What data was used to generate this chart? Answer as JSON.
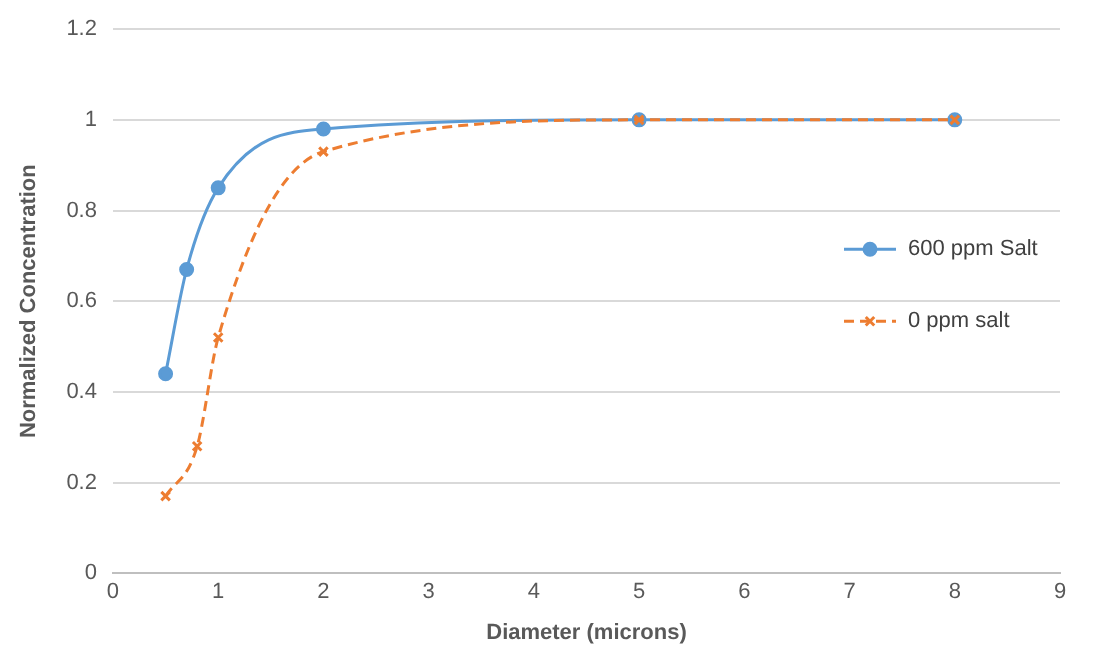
{
  "chart_data": {
    "type": "line",
    "xlabel": "Diameter (microns)",
    "ylabel": "Normalized Concentration",
    "xlim": [
      0,
      9
    ],
    "xticks": [
      0,
      1,
      2,
      3,
      4,
      5,
      6,
      7,
      8,
      9
    ],
    "ylim": [
      0,
      1.2
    ],
    "yticks": [
      0,
      0.2,
      0.4,
      0.6,
      0.8,
      1,
      1.2
    ],
    "grid": "y",
    "legend": "right",
    "series": [
      {
        "name": "600 ppm Salt",
        "color": "#5b9bd5",
        "marker": "circle",
        "line_style": "solid",
        "x": [
          0.5,
          0.7,
          1,
          2,
          5,
          8
        ],
        "values": [
          0.44,
          0.67,
          0.85,
          0.98,
          1.0,
          1.0
        ]
      },
      {
        "name": "0 ppm salt",
        "color": "#ed7d31",
        "marker": "cross",
        "line_style": "dashed",
        "x": [
          0.5,
          0.8,
          1,
          2,
          5,
          8
        ],
        "values": [
          0.17,
          0.28,
          0.52,
          0.93,
          1.0,
          1.0
        ]
      }
    ]
  }
}
